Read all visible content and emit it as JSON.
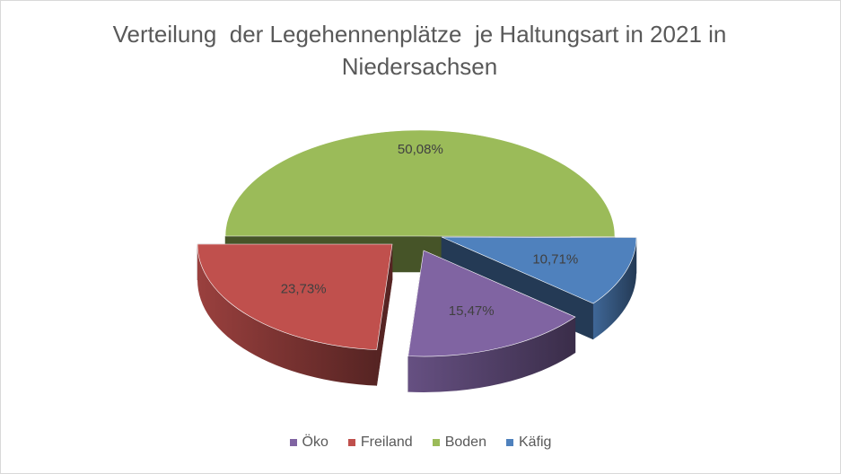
{
  "chart_data": {
    "type": "pie",
    "title": "Verteilung  der Legehennenplätze  je Haltungsart in 2021 in Niedersachsen",
    "legend_position": "bottom",
    "slices": [
      {
        "name": "Öko",
        "value": 15.47,
        "label": "15,47%",
        "color": "#8064a2"
      },
      {
        "name": "Freiland",
        "value": 23.73,
        "label": "23,73%",
        "color": "#c0504d"
      },
      {
        "name": "Boden",
        "value": 50.08,
        "label": "50,08%",
        "color": "#9bbb59"
      },
      {
        "name": "Käfig",
        "value": 10.71,
        "label": "10,71%",
        "color": "#4f81bd"
      }
    ]
  }
}
